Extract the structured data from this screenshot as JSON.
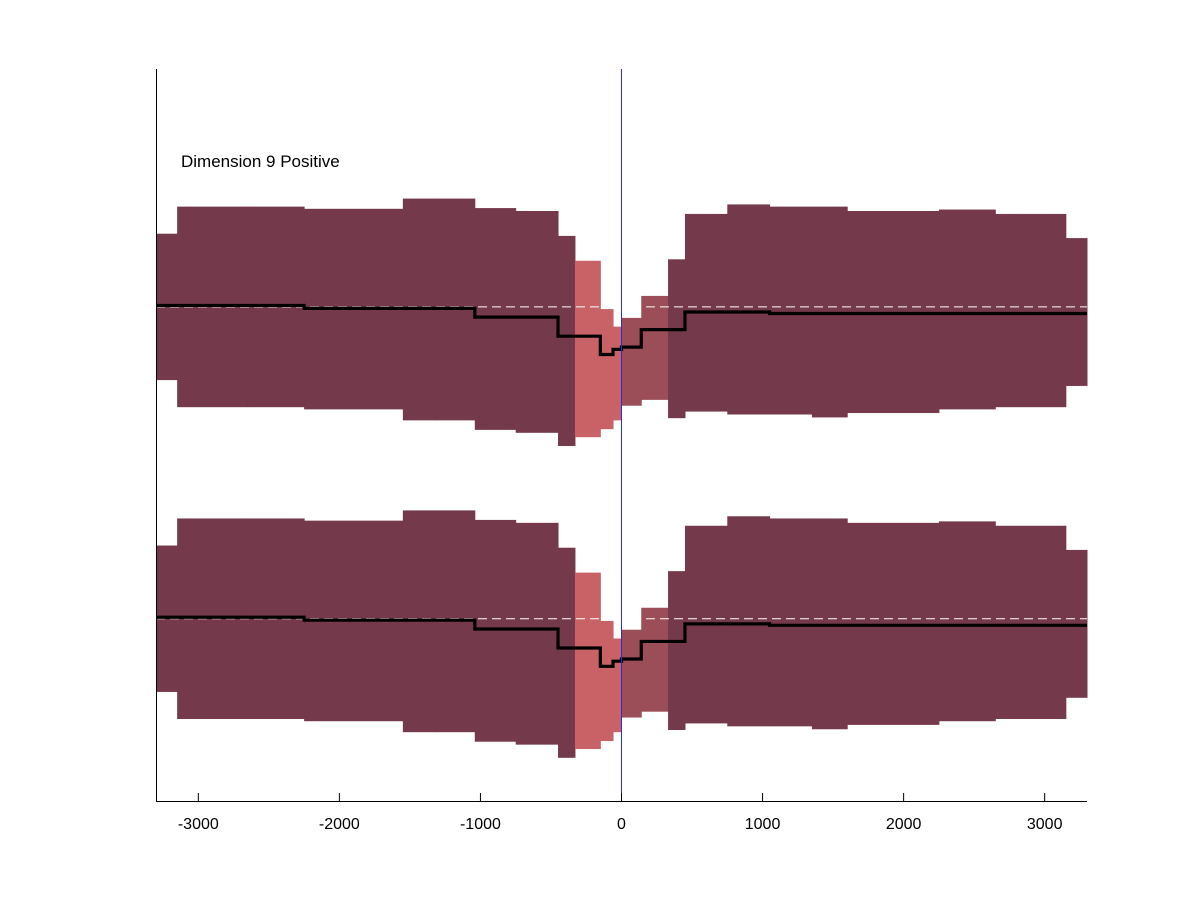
{
  "chart_data": {
    "type": "area",
    "title": "",
    "xlabel": "",
    "ylabel": "",
    "xlim": [
      -3300,
      3300
    ],
    "ylim": [
      0,
      1
    ],
    "grid": false,
    "annotation": "Dimension 9 Positive",
    "x_ticks": [
      -3000,
      -2000,
      -1000,
      0,
      1000,
      2000,
      3000
    ],
    "x_tick_labels": [
      "-3000",
      "-2000",
      "-1000",
      "0",
      "1000",
      "2000",
      "3000"
    ],
    "marker_line_x": 0,
    "colors": {
      "band_dark": "#74394a",
      "band_mid": "#9b4d58",
      "band_light": "#c86266",
      "mean_line": "#000000",
      "baseline": "#ffffff",
      "marker_line": "#2b2bd9",
      "axis": "#000000"
    },
    "panels": [
      {
        "name": "upper",
        "baseline": 0.675,
        "bins": [
          {
            "x0": -3300,
            "x1": -3150,
            "lo": 0.575,
            "hi": 0.775,
            "mean": 0.677,
            "shade": "dark"
          },
          {
            "x0": -3150,
            "x1": -2650,
            "lo": 0.538,
            "hi": 0.812,
            "mean": 0.677,
            "shade": "dark"
          },
          {
            "x0": -2650,
            "x1": -2250,
            "lo": 0.538,
            "hi": 0.812,
            "mean": 0.677,
            "shade": "dark"
          },
          {
            "x0": -2250,
            "x1": -1550,
            "lo": 0.535,
            "hi": 0.809,
            "mean": 0.673,
            "shade": "dark"
          },
          {
            "x0": -1550,
            "x1": -1320,
            "lo": 0.52,
            "hi": 0.823,
            "mean": 0.673,
            "shade": "dark"
          },
          {
            "x0": -1320,
            "x1": -1040,
            "lo": 0.52,
            "hi": 0.823,
            "mean": 0.673,
            "shade": "dark"
          },
          {
            "x0": -1040,
            "x1": -750,
            "lo": 0.507,
            "hi": 0.81,
            "mean": 0.661,
            "shade": "dark"
          },
          {
            "x0": -750,
            "x1": -450,
            "lo": 0.503,
            "hi": 0.806,
            "mean": 0.661,
            "shade": "dark"
          },
          {
            "x0": -450,
            "x1": -330,
            "lo": 0.485,
            "hi": 0.772,
            "mean": 0.635,
            "shade": "dark"
          },
          {
            "x0": -330,
            "x1": -150,
            "lo": 0.497,
            "hi": 0.738,
            "mean": 0.635,
            "shade": "light"
          },
          {
            "x0": -150,
            "x1": -60,
            "lo": 0.508,
            "hi": 0.672,
            "mean": 0.61,
            "shade": "light"
          },
          {
            "x0": -60,
            "x1": 0,
            "lo": 0.52,
            "hi": 0.648,
            "mean": 0.617,
            "shade": "light"
          },
          {
            "x0": 0,
            "x1": 140,
            "lo": 0.54,
            "hi": 0.66,
            "mean": 0.62,
            "shade": "mid"
          },
          {
            "x0": 140,
            "x1": 330,
            "lo": 0.548,
            "hi": 0.69,
            "mean": 0.644,
            "shade": "mid"
          },
          {
            "x0": 330,
            "x1": 450,
            "lo": 0.523,
            "hi": 0.74,
            "mean": 0.644,
            "shade": "dark"
          },
          {
            "x0": 450,
            "x1": 750,
            "lo": 0.532,
            "hi": 0.802,
            "mean": 0.668,
            "shade": "dark"
          },
          {
            "x0": 750,
            "x1": 1050,
            "lo": 0.528,
            "hi": 0.815,
            "mean": 0.668,
            "shade": "dark"
          },
          {
            "x0": 1050,
            "x1": 1350,
            "lo": 0.528,
            "hi": 0.812,
            "mean": 0.666,
            "shade": "dark"
          },
          {
            "x0": 1350,
            "x1": 1600,
            "lo": 0.524,
            "hi": 0.812,
            "mean": 0.666,
            "shade": "dark"
          },
          {
            "x0": 1600,
            "x1": 2250,
            "lo": 0.53,
            "hi": 0.806,
            "mean": 0.666,
            "shade": "dark"
          },
          {
            "x0": 2250,
            "x1": 2650,
            "lo": 0.535,
            "hi": 0.808,
            "mean": 0.666,
            "shade": "dark"
          },
          {
            "x0": 2650,
            "x1": 3150,
            "lo": 0.538,
            "hi": 0.802,
            "mean": 0.666,
            "shade": "dark"
          },
          {
            "x0": 3150,
            "x1": 3300,
            "lo": 0.567,
            "hi": 0.769,
            "mean": 0.666,
            "shade": "dark"
          }
        ]
      },
      {
        "name": "lower",
        "baseline": 0.249,
        "bins": [
          {
            "x0": -3300,
            "x1": -3150,
            "lo": 0.149,
            "hi": 0.349,
            "mean": 0.251,
            "shade": "dark"
          },
          {
            "x0": -3150,
            "x1": -2650,
            "lo": 0.112,
            "hi": 0.386,
            "mean": 0.251,
            "shade": "dark"
          },
          {
            "x0": -2650,
            "x1": -2250,
            "lo": 0.112,
            "hi": 0.386,
            "mean": 0.251,
            "shade": "dark"
          },
          {
            "x0": -2250,
            "x1": -1550,
            "lo": 0.109,
            "hi": 0.383,
            "mean": 0.247,
            "shade": "dark"
          },
          {
            "x0": -1550,
            "x1": -1320,
            "lo": 0.094,
            "hi": 0.397,
            "mean": 0.247,
            "shade": "dark"
          },
          {
            "x0": -1320,
            "x1": -1040,
            "lo": 0.094,
            "hi": 0.397,
            "mean": 0.247,
            "shade": "dark"
          },
          {
            "x0": -1040,
            "x1": -750,
            "lo": 0.081,
            "hi": 0.384,
            "mean": 0.235,
            "shade": "dark"
          },
          {
            "x0": -750,
            "x1": -450,
            "lo": 0.077,
            "hi": 0.38,
            "mean": 0.235,
            "shade": "dark"
          },
          {
            "x0": -450,
            "x1": -330,
            "lo": 0.059,
            "hi": 0.346,
            "mean": 0.209,
            "shade": "dark"
          },
          {
            "x0": -330,
            "x1": -150,
            "lo": 0.071,
            "hi": 0.312,
            "mean": 0.209,
            "shade": "light"
          },
          {
            "x0": -150,
            "x1": -60,
            "lo": 0.082,
            "hi": 0.246,
            "mean": 0.184,
            "shade": "light"
          },
          {
            "x0": -60,
            "x1": 0,
            "lo": 0.094,
            "hi": 0.222,
            "mean": 0.191,
            "shade": "light"
          },
          {
            "x0": 0,
            "x1": 140,
            "lo": 0.114,
            "hi": 0.234,
            "mean": 0.194,
            "shade": "mid"
          },
          {
            "x0": 140,
            "x1": 330,
            "lo": 0.122,
            "hi": 0.264,
            "mean": 0.218,
            "shade": "mid"
          },
          {
            "x0": 330,
            "x1": 450,
            "lo": 0.097,
            "hi": 0.314,
            "mean": 0.218,
            "shade": "dark"
          },
          {
            "x0": 450,
            "x1": 750,
            "lo": 0.106,
            "hi": 0.376,
            "mean": 0.242,
            "shade": "dark"
          },
          {
            "x0": 750,
            "x1": 1050,
            "lo": 0.102,
            "hi": 0.389,
            "mean": 0.242,
            "shade": "dark"
          },
          {
            "x0": 1050,
            "x1": 1350,
            "lo": 0.102,
            "hi": 0.386,
            "mean": 0.24,
            "shade": "dark"
          },
          {
            "x0": 1350,
            "x1": 1600,
            "lo": 0.098,
            "hi": 0.386,
            "mean": 0.24,
            "shade": "dark"
          },
          {
            "x0": 1600,
            "x1": 2250,
            "lo": 0.104,
            "hi": 0.38,
            "mean": 0.24,
            "shade": "dark"
          },
          {
            "x0": 2250,
            "x1": 2650,
            "lo": 0.109,
            "hi": 0.382,
            "mean": 0.24,
            "shade": "dark"
          },
          {
            "x0": 2650,
            "x1": 3150,
            "lo": 0.112,
            "hi": 0.376,
            "mean": 0.24,
            "shade": "dark"
          },
          {
            "x0": 3150,
            "x1": 3300,
            "lo": 0.141,
            "hi": 0.343,
            "mean": 0.24,
            "shade": "dark"
          }
        ]
      }
    ]
  }
}
